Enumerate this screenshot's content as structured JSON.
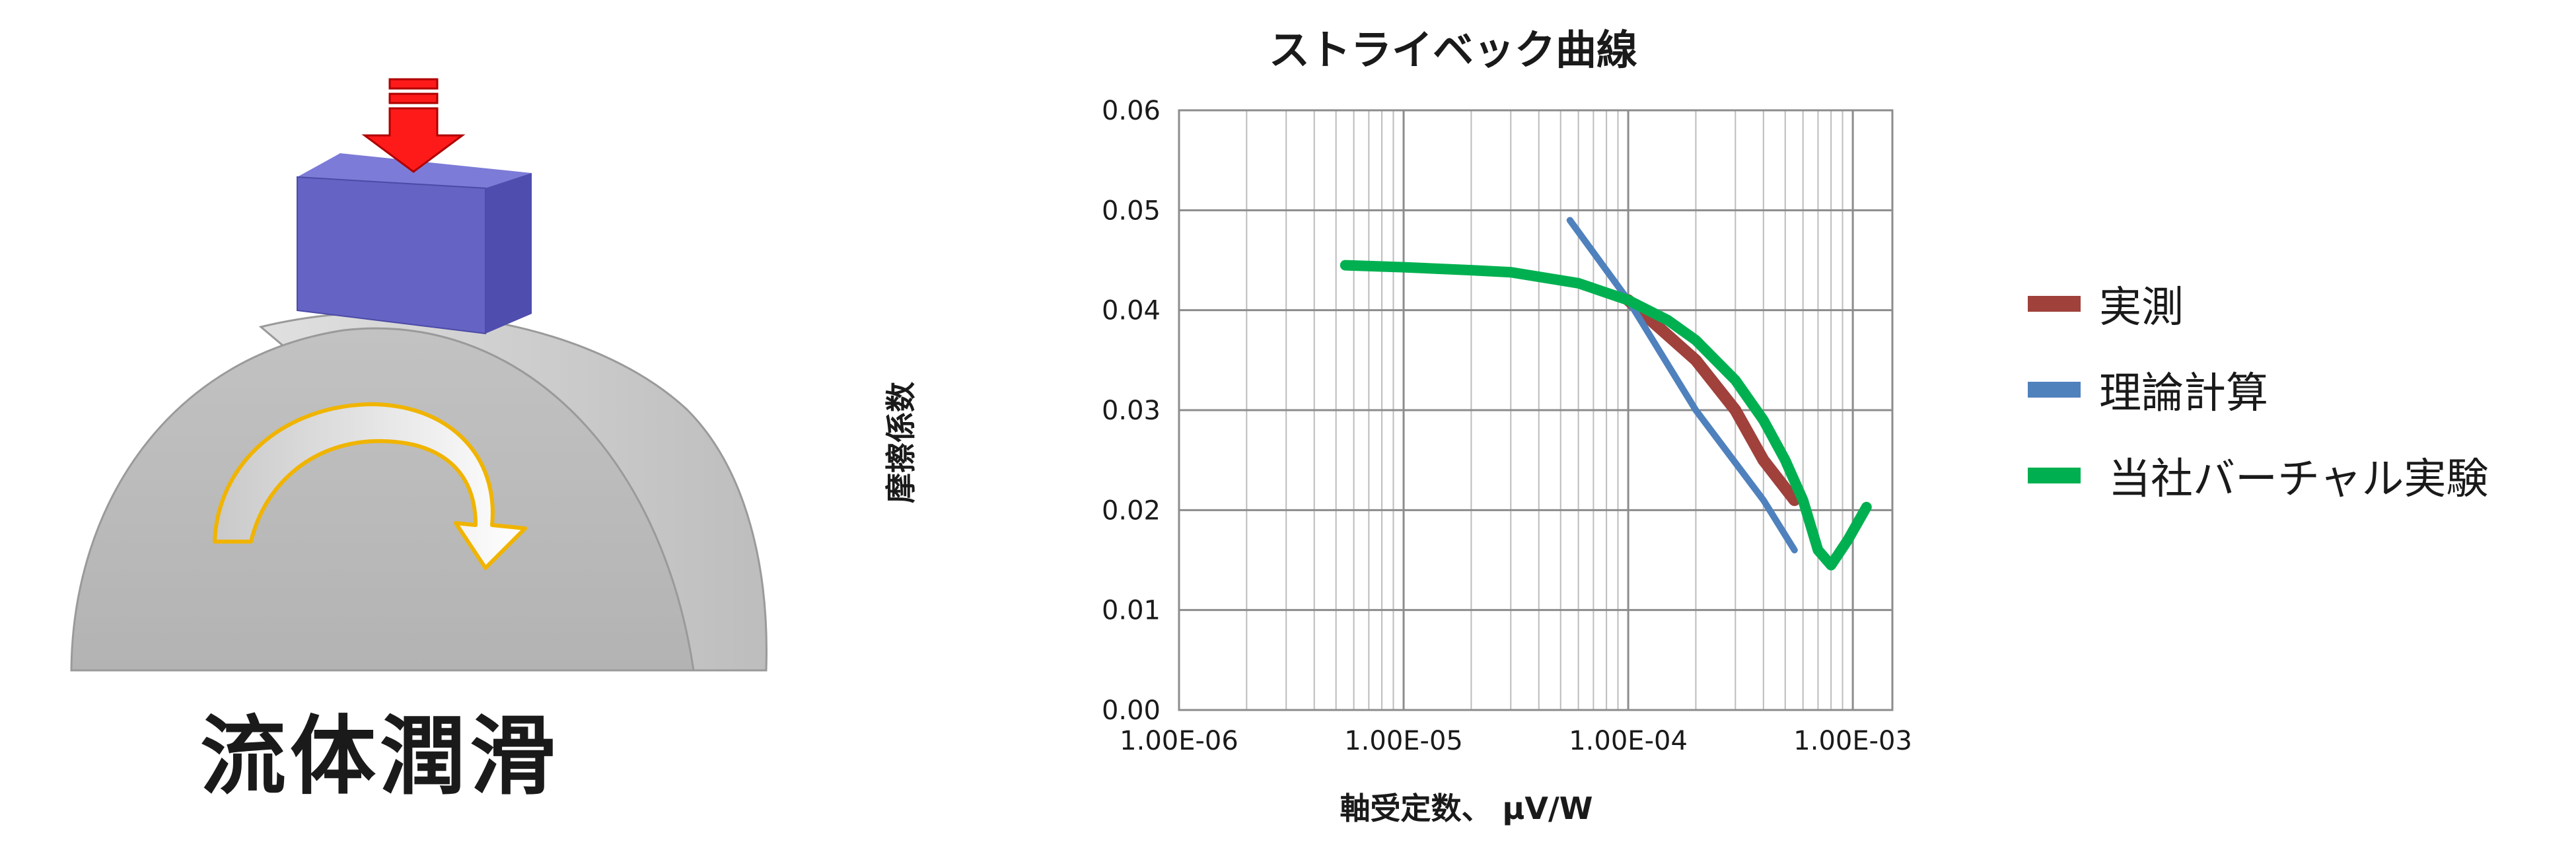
{
  "illustration": {
    "caption": "流体潤滑",
    "colors": {
      "block": "#6563c4",
      "cylinder": "#c4c4c4",
      "load_arrow": "#ff0000",
      "rotation_arrow": "#f0b400"
    }
  },
  "chart_data": {
    "type": "line",
    "title": "ストライベック曲線",
    "xlabel": "軸受定数、 μV/W",
    "ylabel": "摩擦係数",
    "x_scale": "log",
    "xlim": [
      1e-06,
      0.0015
    ],
    "ylim": [
      0,
      0.06
    ],
    "x_ticks": [
      1e-06,
      1e-05,
      0.0001,
      0.001
    ],
    "x_tick_labels": [
      "1.00E-06",
      "1.00E-05",
      "1.00E-04",
      "1.00E-03"
    ],
    "y_ticks": [
      0,
      0.01,
      0.02,
      0.03,
      0.04,
      0.05,
      0.06
    ],
    "y_tick_labels": [
      "0.00",
      "0.01",
      "0.02",
      "0.03",
      "0.04",
      "0.05",
      "0.06"
    ],
    "grid": true,
    "legend_position": "right",
    "series": [
      {
        "name": "実測",
        "color": "#a0413c",
        "x": [
          0.0001,
          0.0002,
          0.0003,
          0.0004,
          0.00055
        ],
        "y": [
          0.041,
          0.035,
          0.03,
          0.025,
          0.021
        ]
      },
      {
        "name": "理論計算",
        "color": "#4f81bd",
        "x": [
          5.5e-05,
          0.0001,
          0.0002,
          0.0004,
          0.00055
        ],
        "y": [
          0.049,
          0.041,
          0.03,
          0.021,
          0.016
        ]
      },
      {
        "name": "当社バーチャル実験",
        "color": "#00b050",
        "x": [
          5.5e-06,
          1e-05,
          2e-05,
          3e-05,
          6e-05,
          0.0001,
          0.00015,
          0.0002,
          0.0003,
          0.0004,
          0.0005,
          0.0006,
          0.0007,
          0.0008,
          0.00095,
          0.00115
        ],
        "y": [
          0.0445,
          0.0443,
          0.044,
          0.0438,
          0.0427,
          0.041,
          0.039,
          0.037,
          0.033,
          0.029,
          0.025,
          0.021,
          0.016,
          0.0145,
          0.017,
          0.0203
        ]
      }
    ]
  }
}
